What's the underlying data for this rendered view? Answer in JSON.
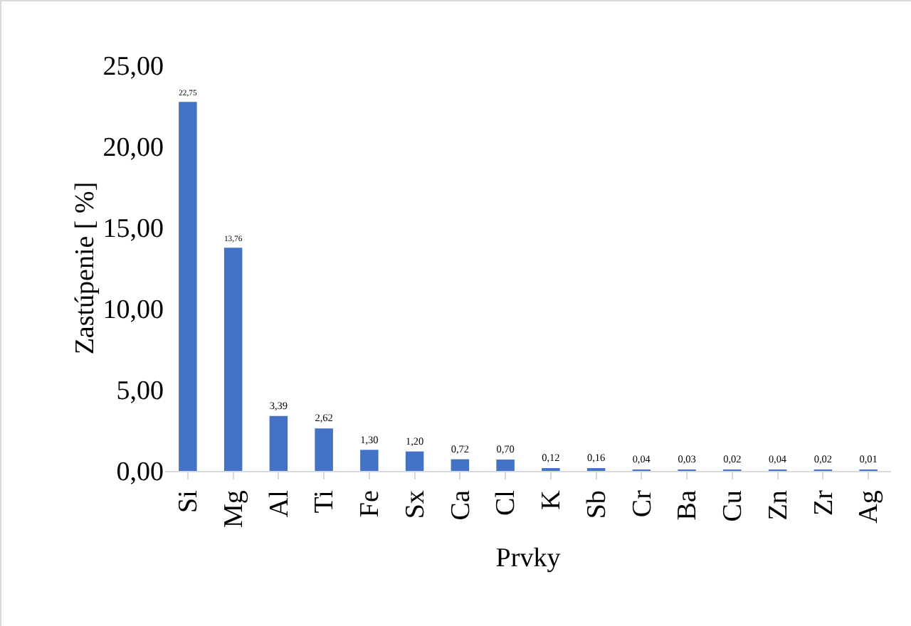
{
  "chart_data": {
    "type": "bar",
    "xlabel": "Prvky",
    "ylabel": "Zastúpenie [ %]",
    "categories": [
      "Si",
      "Mg",
      "Al",
      "Ti",
      "Fe",
      "Sx",
      "Ca",
      "Cl",
      "K",
      "Sb",
      "Cr",
      "Ba",
      "Cu",
      "Zn",
      "Zr",
      "Ag"
    ],
    "values": [
      22.75,
      13.76,
      3.39,
      2.62,
      1.3,
      1.2,
      0.72,
      0.7,
      0.12,
      0.16,
      0.04,
      0.03,
      0.02,
      0.04,
      0.02,
      0.01
    ],
    "value_labels": [
      "22,75",
      "13,76",
      "3,39",
      "2,62",
      "1,30",
      "1,20",
      "0,72",
      "0,70",
      "0,12",
      "0,16",
      "0,04",
      "0,03",
      "0,02",
      "0,04",
      "0,02",
      "0,01"
    ],
    "color": "#4472c4",
    "ylim": [
      0,
      25
    ],
    "yticks": [
      {
        "value": 0,
        "label": "0,00"
      },
      {
        "value": 5,
        "label": "5,00"
      },
      {
        "value": 10,
        "label": "10,00"
      },
      {
        "value": 15,
        "label": "15,00"
      },
      {
        "value": 20,
        "label": "20,00"
      },
      {
        "value": 25,
        "label": "25,00"
      }
    ],
    "grid": false,
    "legend": false
  }
}
